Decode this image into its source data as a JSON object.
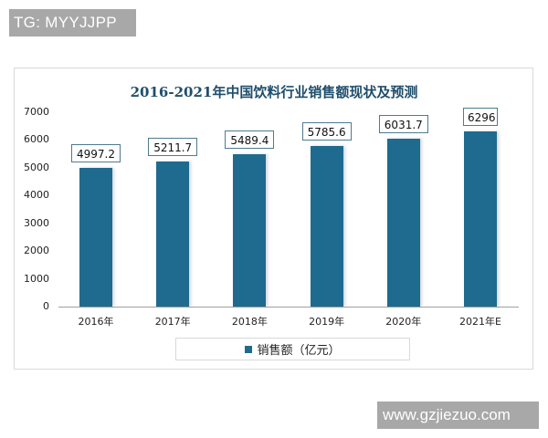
{
  "watermarks": {
    "top_left": "TG: MYYJJPP",
    "bottom_right": "www.gzjiezuo.com"
  },
  "colors": {
    "bar": "#1f6a8f",
    "title": "#1f4e6b",
    "label_border": "#4f7a8f",
    "watermark_bg": "#a8a8a8"
  },
  "chart_data": {
    "type": "bar",
    "title": "2016-2021年中国饮料行业销售额现状及预测",
    "categories": [
      "2016年",
      "2017年",
      "2018年",
      "2019年",
      "2020年",
      "2021年E"
    ],
    "series": [
      {
        "name": "销售额（亿元）",
        "values": [
          4997.2,
          5211.7,
          5489.4,
          5785.6,
          6031.7,
          6296
        ]
      }
    ],
    "data_labels": [
      "4997.2",
      "5211.7",
      "5489.4",
      "5785.6",
      "6031.7",
      "6296"
    ],
    "xlabel": "",
    "ylabel": "",
    "ylim": [
      0,
      7000
    ],
    "yticks": [
      "0",
      "1000",
      "2000",
      "3000",
      "4000",
      "5000",
      "6000",
      "7000"
    ],
    "grid": false,
    "legend_position": "bottom"
  },
  "legend": {
    "label": "销售额（亿元）"
  }
}
